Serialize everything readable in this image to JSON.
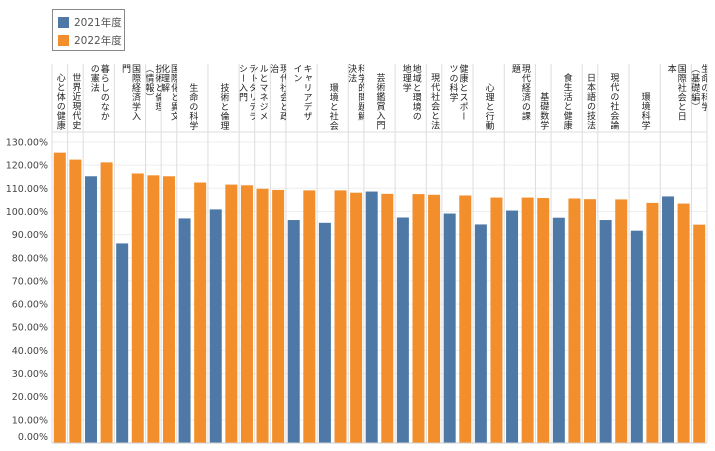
{
  "legend": [
    {
      "label": "2021年度",
      "color": "#4e79a7"
    },
    {
      "label": "2022年度",
      "color": "#f28e2b"
    }
  ],
  "chart_data": {
    "type": "bar",
    "ylim": [
      0,
      130
    ],
    "yticks": [
      "0.00%",
      "10.00%",
      "20.00%",
      "30.00%",
      "40.00%",
      "50.00%",
      "60.00%",
      "70.00%",
      "80.00%",
      "90.00%",
      "100.00%",
      "110.00%",
      "120.00%",
      "130.00%"
    ],
    "grid": true,
    "legend_position": "top-left",
    "series": [
      {
        "name": "2021年度",
        "color": "#4e79a7"
      },
      {
        "name": "2022年度",
        "color": "#f28e2b"
      }
    ],
    "categories": [
      {
        "label": "心と体の健康",
        "values": [
          null,
          125.4
        ]
      },
      {
        "label": "世界近現代史",
        "values": [
          null,
          122.4
        ]
      },
      {
        "label": "暮らしのなかの憲法",
        "values": [
          115.2,
          121.2
        ]
      },
      {
        "label": "国際経済学入門",
        "values": [
          86.2,
          116.4
        ]
      },
      {
        "label": "技術と倫理（情報）",
        "values": [
          null,
          115.6
        ]
      },
      {
        "label": "国際化と異文化理解",
        "values": [
          null,
          115.2
        ]
      },
      {
        "label": "生命の科学",
        "values": [
          97.0,
          112.5
        ]
      },
      {
        "label": "技術と倫理",
        "values": [
          100.9,
          111.6
        ]
      },
      {
        "label": "データリテラシー入門",
        "values": [
          null,
          111.3
        ]
      },
      {
        "label": "ビジネスモデルとマネジメント",
        "values": [
          null,
          109.8
        ]
      },
      {
        "label": "現代社会と政治",
        "values": [
          null,
          109.3
        ]
      },
      {
        "label": "キャリアデザイン",
        "values": [
          96.3,
          109.1
        ]
      },
      {
        "label": "環境と社会",
        "values": [
          95.1,
          109.1
        ]
      },
      {
        "label": "科学的問題解決法",
        "values": [
          null,
          108.1
        ]
      },
      {
        "label": "芸術鑑賞入門",
        "values": [
          108.6,
          107.6
        ]
      },
      {
        "label": "地域と環境の地理学",
        "values": [
          97.4,
          107.5
        ]
      },
      {
        "label": "現代社会と法",
        "values": [
          null,
          107.2
        ]
      },
      {
        "label": "健康とスポーツの科学",
        "values": [
          99.1,
          106.9
        ]
      },
      {
        "label": "心理と行動",
        "values": [
          94.4,
          106.0
        ]
      },
      {
        "label": "現代経済の課題",
        "values": [
          100.4,
          106.0
        ]
      },
      {
        "label": "基礎数学",
        "values": [
          null,
          105.8
        ]
      },
      {
        "label": "食生活と健康",
        "values": [
          97.3,
          105.6
        ]
      },
      {
        "label": "日本語の技法",
        "values": [
          null,
          105.3
        ]
      },
      {
        "label": "現代の社会論",
        "values": [
          96.3,
          105.2
        ]
      },
      {
        "label": "環境科学",
        "values": [
          91.7,
          103.7
        ]
      },
      {
        "label": "国際社会と日本",
        "values": [
          106.5,
          103.4
        ]
      },
      {
        "label": "生命の科学（基礎編）",
        "values": [
          null,
          94.3
        ]
      }
    ]
  }
}
